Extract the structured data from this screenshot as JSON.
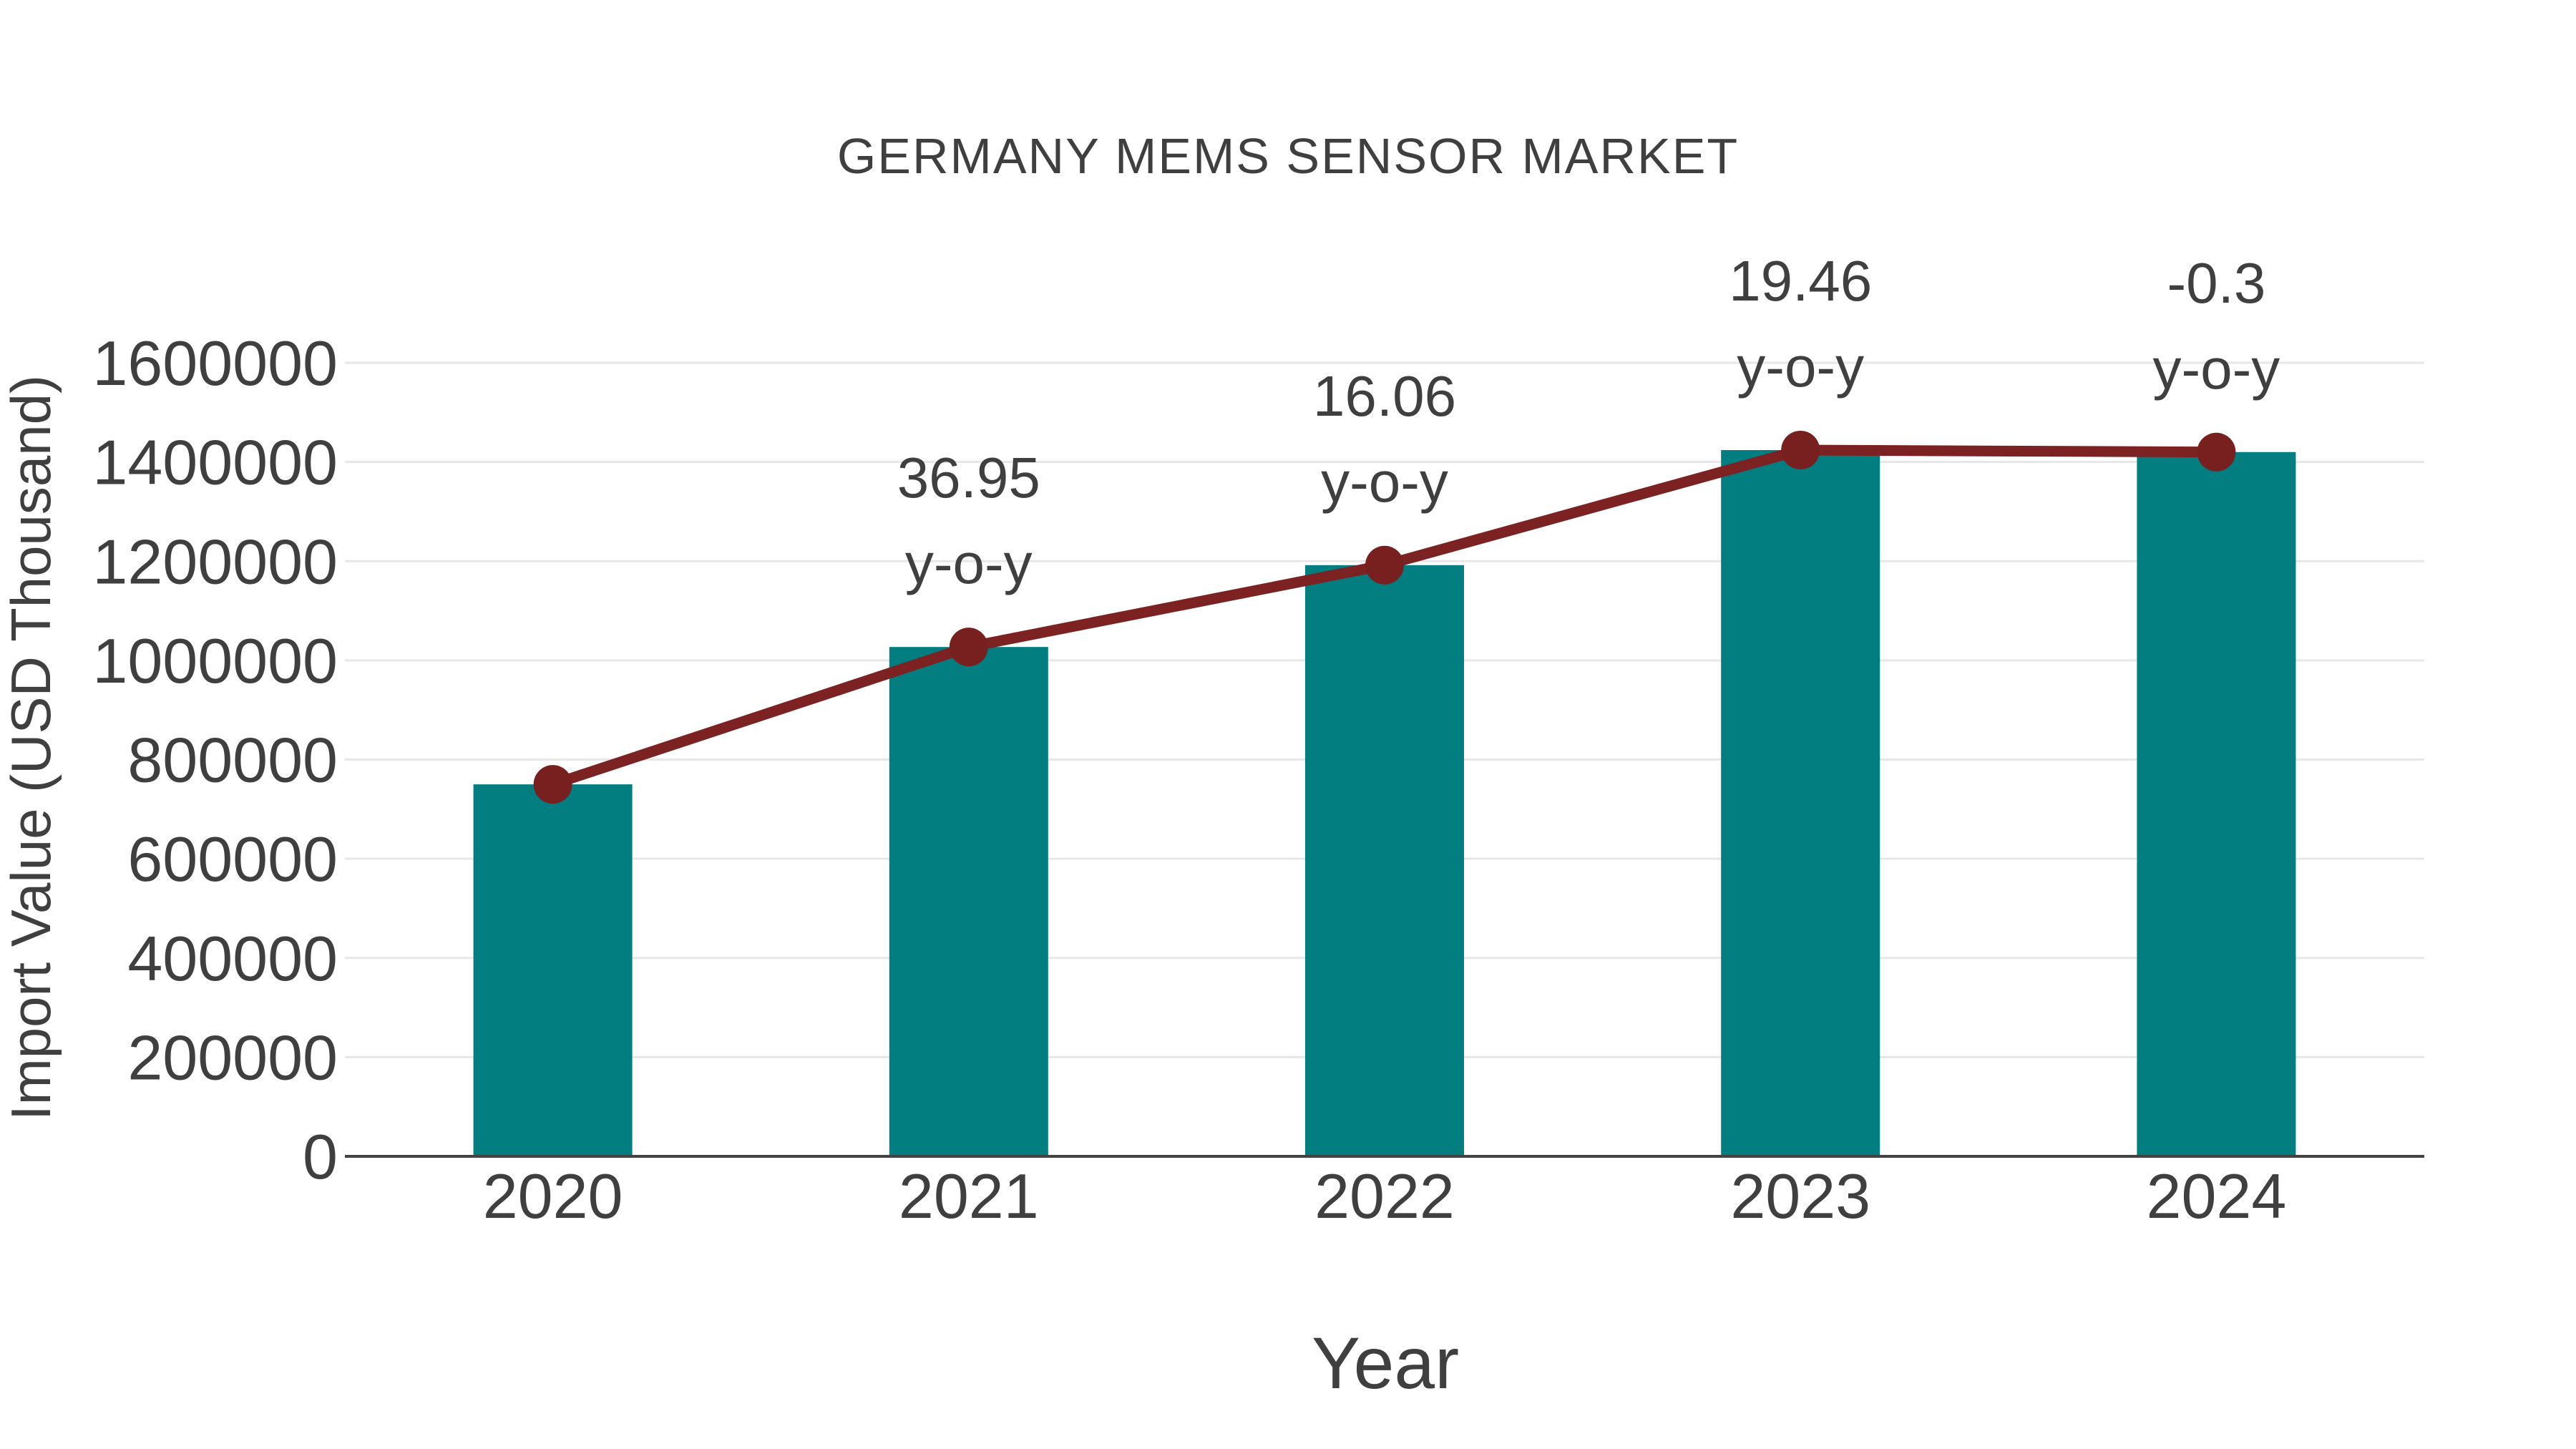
{
  "page": {
    "background": "#FFFFFF"
  },
  "chart_data": {
    "type": "bar",
    "title": "GERMANY MEMS SENSOR MARKET",
    "xlabel": "Year",
    "ylabel": "Import Value (USD Thousand)",
    "categories": [
      "2020",
      "2021",
      "2022",
      "2023",
      "2024"
    ],
    "series": [
      {
        "name": "import-value-bars",
        "type": "bar",
        "values": [
          750000,
          1027000,
          1192000,
          1424000,
          1420000
        ]
      },
      {
        "name": "import-value-line",
        "type": "line",
        "values": [
          750000,
          1027000,
          1192000,
          1424000,
          1420000
        ]
      }
    ],
    "annotations": [
      {
        "category": "2021",
        "text": "36.95",
        "suffix": "y-o-y"
      },
      {
        "category": "2022",
        "text": "16.06",
        "suffix": "y-o-y"
      },
      {
        "category": "2023",
        "text": "19.46",
        "suffix": "y-o-y"
      },
      {
        "category": "2024",
        "text": "-0.3",
        "suffix": "y-o-y"
      }
    ],
    "ylim": [
      0,
      1600000
    ],
    "ytick_step": 200000,
    "yticks": [
      "0",
      "200000",
      "400000",
      "600000",
      "800000",
      "1000000",
      "1200000",
      "1400000",
      "1600000"
    ],
    "grid": true,
    "legend": "none",
    "colors": {
      "bar": "#027D80",
      "line": "#7D2222",
      "marker": "#781F1F",
      "grid": "#E7E7E7",
      "axis": "#424242",
      "text": "#3F3F3F"
    }
  }
}
